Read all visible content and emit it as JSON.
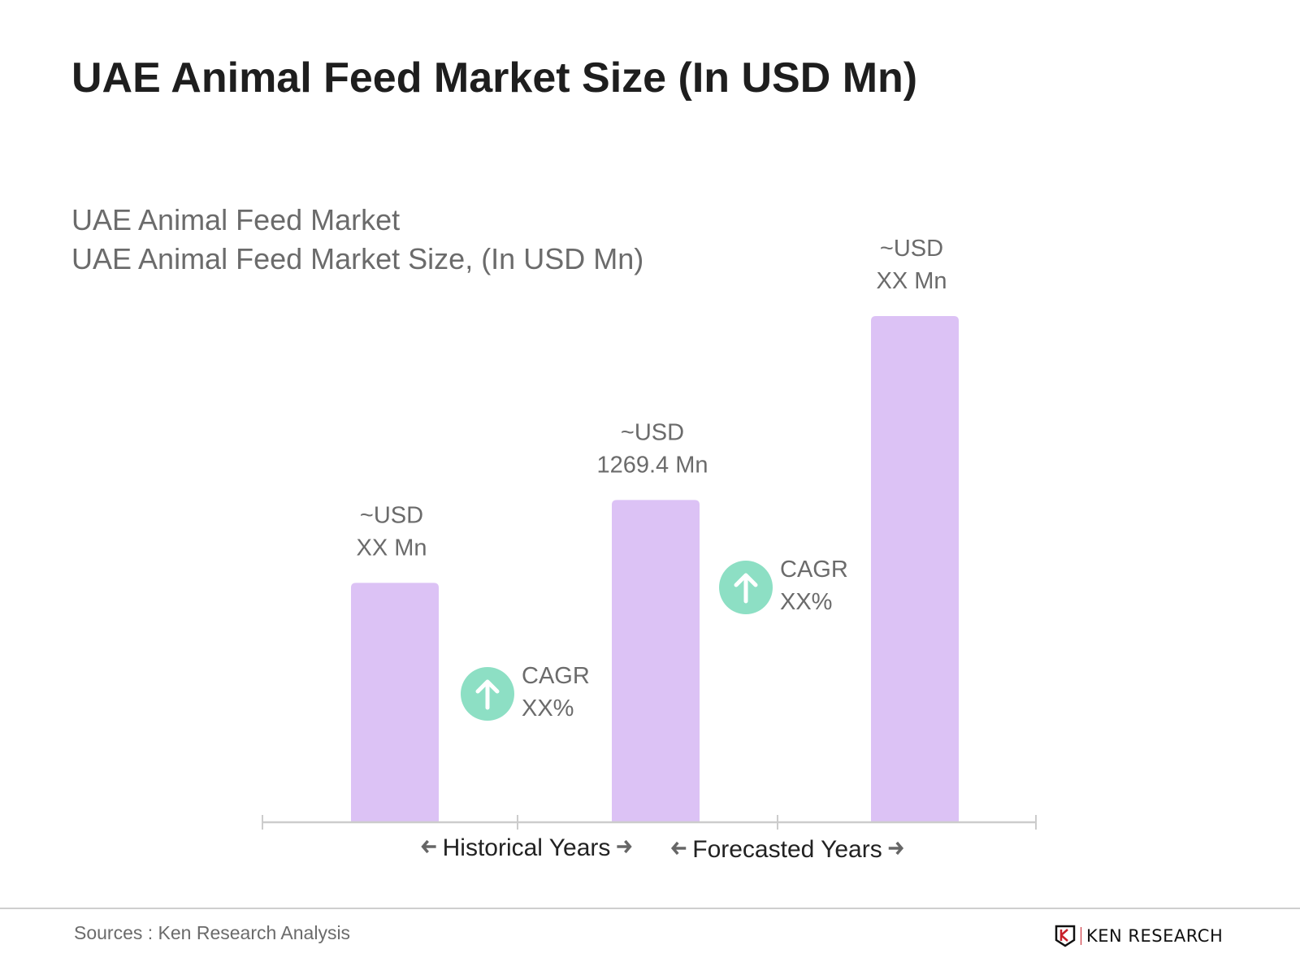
{
  "header": {
    "title": "UAE Animal Feed Market Size (In USD Mn)"
  },
  "subtitle": {
    "line1": "UAE Animal Feed Market",
    "line2": "UAE Animal Feed Market Size, (In USD Mn)"
  },
  "chart_data": {
    "type": "bar",
    "categories": [
      "",
      "",
      ""
    ],
    "values": [
      943,
      1269.4,
      1994
    ],
    "data_labels": [
      {
        "line1": "~USD",
        "line2": "XX Mn"
      },
      {
        "line1": "~USD",
        "line2": "1269.4 Mn"
      },
      {
        "line1": "~USD",
        "line2": "XX Mn"
      }
    ],
    "annotations": [
      {
        "label": "CAGR",
        "value": "XX%",
        "icon": "arrow-up-icon"
      },
      {
        "label": "CAGR",
        "value": "XX%",
        "icon": "arrow-up-icon"
      }
    ],
    "period_labels": [
      "Historical Years",
      "Forecasted Years"
    ],
    "grid": false,
    "colors": {
      "bar": "#dcc2f5",
      "cagr": "#8ddfc4",
      "axis": "#cccccc"
    }
  },
  "footer": {
    "sources": "Sources : Ken Research Analysis",
    "logo_text": "KEN RESEARCH"
  }
}
